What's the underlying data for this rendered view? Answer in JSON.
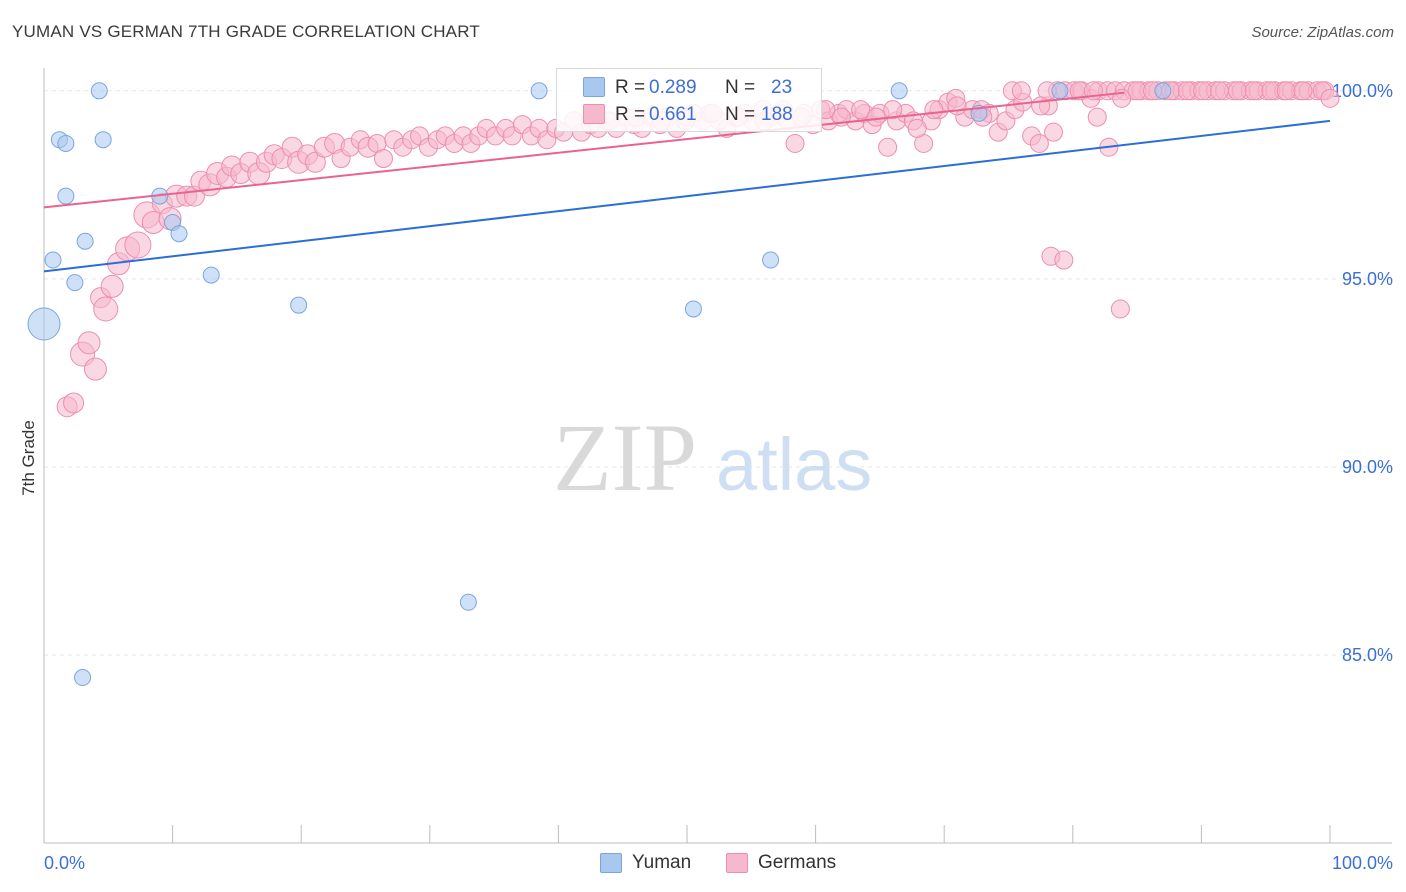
{
  "header": {
    "title": "YUMAN VS GERMAN 7TH GRADE CORRELATION CHART",
    "source": "Source: ZipAtlas.com"
  },
  "watermark": {
    "zip": "ZIP",
    "atlas": "atlas"
  },
  "legend": {
    "r_label": "R =",
    "n_label": "N =",
    "rows": [
      {
        "r": "0.289",
        "n": "23",
        "color": "#a8c8f0",
        "stroke": "#7aa6e0"
      },
      {
        "r": "0.661",
        "n": "188",
        "color": "#f6b8cc",
        "stroke": "#ec8fae"
      }
    ]
  },
  "bottom_legend": [
    {
      "label": "Yuman",
      "color": "#a8c8f0",
      "stroke": "#7aa6e0"
    },
    {
      "label": "Germans",
      "color": "#f6b8cc",
      "stroke": "#ec8fae"
    }
  ],
  "chart_data": {
    "type": "scatter",
    "title": "YUMAN VS GERMAN 7TH GRADE CORRELATION CHART",
    "xlabel": "",
    "ylabel": "7th Grade",
    "xlim": [
      0,
      100
    ],
    "ylim": [
      80,
      100.5
    ],
    "x_tick_labels": [
      "0.0%",
      "100.0%"
    ],
    "y_ticks": [
      100,
      95,
      90,
      85
    ],
    "y_tick_labels": [
      "100.0%",
      "95.0%",
      "90.0%",
      "85.0%"
    ],
    "grid": true,
    "series": [
      {
        "name": "Yuman",
        "color": "#a8c8f0",
        "stroke": "#7aa6e0",
        "trend_color": "#2a6ed6",
        "trend": [
          [
            0,
            95.2
          ],
          [
            100,
            99.2
          ]
        ],
        "points": [
          [
            0.0,
            93.8,
            16
          ],
          [
            0.7,
            95.5,
            8
          ],
          [
            1.2,
            98.7,
            8
          ],
          [
            1.7,
            98.6,
            8
          ],
          [
            1.7,
            97.2,
            8
          ],
          [
            2.4,
            94.9,
            8
          ],
          [
            3.2,
            96.0,
            8
          ],
          [
            3.0,
            84.4,
            8
          ],
          [
            4.3,
            100.0,
            8
          ],
          [
            4.6,
            98.7,
            8
          ],
          [
            9.0,
            97.2,
            8
          ],
          [
            10.0,
            96.5,
            8
          ],
          [
            10.5,
            96.2,
            8
          ],
          [
            13.0,
            95.1,
            8
          ],
          [
            19.8,
            94.3,
            8
          ],
          [
            33.0,
            86.4,
            8
          ],
          [
            38.5,
            100.0,
            8
          ],
          [
            50.5,
            94.2,
            8
          ],
          [
            56.5,
            95.5,
            8
          ],
          [
            66.5,
            100.0,
            8
          ],
          [
            72.7,
            99.4,
            8
          ],
          [
            79.0,
            100.0,
            8
          ],
          [
            87.0,
            100.0,
            8
          ]
        ]
      },
      {
        "name": "Germans",
        "color": "#f6b8cc",
        "stroke": "#ec8fae",
        "trend_color": "#e8648e",
        "trend": [
          [
            0,
            96.9
          ],
          [
            84,
            99.95
          ]
        ],
        "points": [
          [
            1.8,
            91.6,
            10
          ],
          [
            2.3,
            91.7,
            10
          ],
          [
            3.0,
            93.0,
            12
          ],
          [
            3.5,
            93.3,
            11
          ],
          [
            4.0,
            92.6,
            11
          ],
          [
            4.4,
            94.5,
            10
          ],
          [
            4.8,
            94.2,
            12
          ],
          [
            5.3,
            94.8,
            11
          ],
          [
            5.8,
            95.4,
            11
          ],
          [
            6.5,
            95.8,
            12
          ],
          [
            7.3,
            95.9,
            13
          ],
          [
            8.0,
            96.7,
            13
          ],
          [
            8.5,
            96.5,
            11
          ],
          [
            9.2,
            97.0,
            10
          ],
          [
            9.8,
            96.6,
            11
          ],
          [
            10.3,
            97.2,
            11
          ],
          [
            11.1,
            97.2,
            10
          ],
          [
            11.7,
            97.2,
            10
          ],
          [
            12.2,
            97.6,
            10
          ],
          [
            12.9,
            97.5,
            11
          ],
          [
            13.5,
            97.8,
            11
          ],
          [
            14.2,
            97.7,
            10
          ],
          [
            14.6,
            98.0,
            10
          ],
          [
            15.3,
            97.8,
            10
          ],
          [
            16.0,
            98.1,
            10
          ],
          [
            16.7,
            97.8,
            11
          ],
          [
            17.3,
            98.1,
            10
          ],
          [
            17.9,
            98.3,
            10
          ],
          [
            18.5,
            98.2,
            10
          ],
          [
            19.3,
            98.5,
            10
          ],
          [
            19.8,
            98.1,
            11
          ],
          [
            20.5,
            98.3,
            10
          ],
          [
            21.1,
            98.1,
            10
          ],
          [
            21.8,
            98.5,
            10
          ],
          [
            22.6,
            98.6,
            10
          ],
          [
            23.1,
            98.2,
            9
          ],
          [
            23.8,
            98.5,
            9
          ],
          [
            24.6,
            98.7,
            9
          ],
          [
            25.2,
            98.5,
            10
          ],
          [
            25.9,
            98.6,
            9
          ],
          [
            26.4,
            98.2,
            9
          ],
          [
            27.2,
            98.7,
            9
          ],
          [
            27.9,
            98.5,
            9
          ],
          [
            28.6,
            98.7,
            9
          ],
          [
            29.2,
            98.8,
            9
          ],
          [
            29.9,
            98.5,
            9
          ],
          [
            30.6,
            98.7,
            9
          ],
          [
            31.2,
            98.8,
            9
          ],
          [
            31.9,
            98.6,
            9
          ],
          [
            32.6,
            98.8,
            9
          ],
          [
            33.2,
            98.6,
            9
          ],
          [
            33.8,
            98.8,
            9
          ],
          [
            34.4,
            99.0,
            9
          ],
          [
            35.1,
            98.8,
            9
          ],
          [
            35.9,
            99.0,
            9
          ],
          [
            36.4,
            98.8,
            9
          ],
          [
            37.2,
            99.1,
            9
          ],
          [
            37.9,
            98.8,
            9
          ],
          [
            38.5,
            99.0,
            9
          ],
          [
            39.1,
            98.7,
            9
          ],
          [
            39.8,
            99.0,
            9
          ],
          [
            40.4,
            98.9,
            9
          ],
          [
            41.2,
            99.2,
            9
          ],
          [
            41.8,
            98.9,
            9
          ],
          [
            42.5,
            99.1,
            9
          ],
          [
            43.1,
            99.0,
            9
          ],
          [
            43.8,
            99.2,
            9
          ],
          [
            44.5,
            99.0,
            9
          ],
          [
            45.2,
            99.3,
            9
          ],
          [
            45.9,
            99.1,
            9
          ],
          [
            46.5,
            99.0,
            9
          ],
          [
            47.2,
            99.3,
            9
          ],
          [
            47.9,
            99.1,
            9
          ],
          [
            48.5,
            99.3,
            9
          ],
          [
            49.2,
            99.0,
            9
          ],
          [
            49.9,
            99.2,
            9
          ],
          [
            50.5,
            99.4,
            9
          ],
          [
            51.2,
            99.2,
            9
          ],
          [
            51.8,
            99.4,
            9
          ],
          [
            52.5,
            99.2,
            9
          ],
          [
            53.1,
            99.0,
            9
          ],
          [
            53.8,
            99.3,
            9
          ],
          [
            54.5,
            99.4,
            9
          ],
          [
            55.1,
            99.2,
            9
          ],
          [
            55.9,
            99.5,
            9
          ],
          [
            56.5,
            99.3,
            9
          ],
          [
            57.2,
            99.4,
            9
          ],
          [
            57.8,
            99.2,
            9
          ],
          [
            58.4,
            98.6,
            9
          ],
          [
            59.1,
            99.4,
            9
          ],
          [
            59.8,
            99.1,
            9
          ],
          [
            60.4,
            99.5,
            9
          ],
          [
            61.0,
            99.2,
            9
          ],
          [
            61.8,
            99.4,
            9
          ],
          [
            62.4,
            99.5,
            9
          ],
          [
            63.1,
            99.2,
            9
          ],
          [
            63.8,
            99.4,
            9
          ],
          [
            64.4,
            99.1,
            9
          ],
          [
            65.0,
            99.4,
            9
          ],
          [
            65.6,
            98.5,
            9
          ],
          [
            66.3,
            99.2,
            9
          ],
          [
            67.0,
            99.4,
            9
          ],
          [
            67.6,
            99.2,
            9
          ],
          [
            68.4,
            98.6,
            9
          ],
          [
            69.0,
            99.2,
            9
          ],
          [
            69.6,
            99.5,
            9
          ],
          [
            70.3,
            99.7,
            9
          ],
          [
            70.9,
            99.8,
            9
          ],
          [
            71.6,
            99.3,
            9
          ],
          [
            72.2,
            99.5,
            9
          ],
          [
            72.9,
            99.5,
            9
          ],
          [
            73.5,
            99.4,
            9
          ],
          [
            74.2,
            98.9,
            9
          ],
          [
            74.8,
            99.2,
            9
          ],
          [
            75.5,
            99.5,
            9
          ],
          [
            76.1,
            99.7,
            9
          ],
          [
            76.8,
            98.8,
            9
          ],
          [
            77.4,
            98.6,
            9
          ],
          [
            78.1,
            99.6,
            9
          ],
          [
            78.8,
            100.0,
            9
          ],
          [
            79.4,
            100.0,
            9
          ],
          [
            80.1,
            100.0,
            9
          ],
          [
            80.7,
            100.0,
            9
          ],
          [
            81.4,
            99.8,
            9
          ],
          [
            82.0,
            100.0,
            9
          ],
          [
            82.7,
            100.0,
            9
          ],
          [
            83.3,
            100.0,
            9
          ],
          [
            84.0,
            100.0,
            9
          ],
          [
            84.7,
            100.0,
            9
          ],
          [
            85.3,
            100.0,
            9
          ],
          [
            85.9,
            100.0,
            9
          ],
          [
            86.6,
            100.0,
            9
          ],
          [
            87.2,
            100.0,
            9
          ],
          [
            87.9,
            100.0,
            9
          ],
          [
            88.5,
            100.0,
            9
          ],
          [
            89.2,
            100.0,
            9
          ],
          [
            89.8,
            100.0,
            9
          ],
          [
            90.5,
            100.0,
            9
          ],
          [
            91.1,
            100.0,
            9
          ],
          [
            91.8,
            100.0,
            9
          ],
          [
            92.5,
            100.0,
            9
          ],
          [
            93.1,
            100.0,
            9
          ],
          [
            93.8,
            100.0,
            9
          ],
          [
            94.4,
            100.0,
            9
          ],
          [
            95.1,
            100.0,
            9
          ],
          [
            95.7,
            100.0,
            9
          ],
          [
            96.4,
            100.0,
            9
          ],
          [
            97.0,
            100.0,
            9
          ],
          [
            97.7,
            100.0,
            9
          ],
          [
            98.3,
            100.0,
            9
          ],
          [
            99.0,
            100.0,
            9
          ],
          [
            99.6,
            100.0,
            9
          ],
          [
            75.3,
            100.0,
            9
          ],
          [
            76.0,
            100.0,
            9
          ],
          [
            78.0,
            100.0,
            9
          ],
          [
            80.5,
            100.0,
            9
          ],
          [
            81.6,
            100.0,
            9
          ],
          [
            83.8,
            99.8,
            9
          ],
          [
            85.0,
            100.0,
            9
          ],
          [
            86.2,
            100.0,
            9
          ],
          [
            87.6,
            100.0,
            9
          ],
          [
            88.9,
            100.0,
            9
          ],
          [
            90.1,
            100.0,
            9
          ],
          [
            91.4,
            100.0,
            9
          ],
          [
            92.8,
            100.0,
            9
          ],
          [
            94.1,
            100.0,
            9
          ],
          [
            95.4,
            100.0,
            9
          ],
          [
            96.6,
            100.0,
            9
          ],
          [
            97.9,
            100.0,
            9
          ],
          [
            99.4,
            100.0,
            9
          ],
          [
            100.0,
            99.8,
            9
          ],
          [
            71.0,
            99.6,
            9
          ],
          [
            73.0,
            99.3,
            9
          ],
          [
            77.5,
            99.6,
            9
          ],
          [
            69.2,
            99.5,
            9
          ],
          [
            67.9,
            99.0,
            9
          ],
          [
            66.0,
            99.5,
            9
          ],
          [
            64.7,
            99.3,
            9
          ],
          [
            63.5,
            99.5,
            9
          ],
          [
            62.0,
            99.3,
            9
          ],
          [
            60.8,
            99.5,
            9
          ],
          [
            58.9,
            99.3,
            9
          ],
          [
            57.5,
            99.5,
            9
          ],
          [
            56.0,
            99.2,
            9
          ],
          [
            54.0,
            99.3,
            9
          ],
          [
            52.0,
            99.4,
            9
          ],
          [
            50.0,
            99.3,
            9
          ],
          [
            48.0,
            99.2,
            9
          ],
          [
            46.0,
            99.3,
            9
          ],
          [
            44.0,
            99.2,
            9
          ],
          [
            78.5,
            98.9,
            9
          ],
          [
            81.9,
            99.3,
            9
          ],
          [
            82.8,
            98.5,
            9
          ],
          [
            78.3,
            95.6,
            9
          ],
          [
            79.3,
            95.5,
            9
          ],
          [
            83.7,
            94.2,
            9
          ]
        ]
      }
    ]
  }
}
